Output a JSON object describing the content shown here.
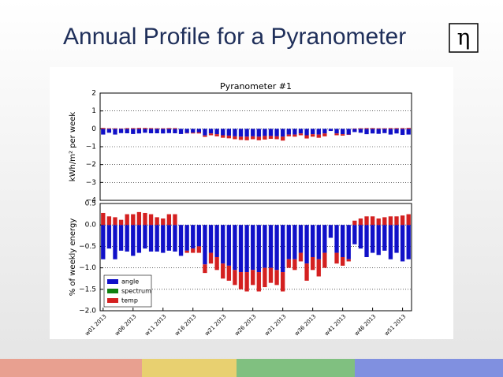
{
  "title": "Annual Profile for a Pyranometer",
  "logo_symbol": "η",
  "chart_data": [
    {
      "type": "bar",
      "title": "Pyranometer #1",
      "ylabel": "kWh/m² per week",
      "ylim": [
        -4,
        2
      ],
      "yticks": [
        {
          "value": -4,
          "label": "−4"
        },
        {
          "value": -3,
          "label": "−3"
        },
        {
          "value": -2,
          "label": "−2"
        },
        {
          "value": -1,
          "label": "−1"
        },
        0,
        1,
        2
      ],
      "grid": true,
      "series": [
        {
          "color": "#1010c8",
          "values": [
            -0.32,
            -0.22,
            -0.32,
            -0.24,
            -0.25,
            -0.29,
            -0.26,
            -0.22,
            -0.25,
            -0.25,
            -0.26,
            -0.24,
            -0.25,
            -0.29,
            -0.24,
            -0.22,
            -0.2,
            -0.37,
            -0.26,
            -0.3,
            -0.36,
            -0.38,
            -0.42,
            -0.44,
            -0.44,
            -0.42,
            -0.44,
            -0.4,
            -0.4,
            -0.42,
            -0.44,
            -0.32,
            -0.32,
            -0.26,
            -0.36,
            -0.3,
            -0.32,
            -0.26,
            -0.12,
            -0.26,
            -0.3,
            -0.32,
            -0.18,
            -0.22,
            -0.3,
            -0.26,
            -0.28,
            -0.24,
            -0.32,
            -0.26,
            -0.34,
            -0.32
          ]
        },
        {
          "color": "#d42020",
          "values": [
            0.05,
            0.03,
            0.03,
            0.02,
            0.04,
            0.04,
            0.05,
            0.05,
            0.04,
            0.03,
            0.03,
            0.04,
            0.04,
            0,
            -0.02,
            -0.04,
            -0.06,
            -0.08,
            -0.1,
            -0.12,
            -0.14,
            -0.15,
            -0.16,
            -0.18,
            -0.2,
            -0.16,
            -0.2,
            -0.2,
            -0.16,
            -0.16,
            -0.22,
            -0.1,
            -0.12,
            -0.1,
            -0.18,
            -0.14,
            -0.18,
            -0.16,
            0,
            -0.1,
            -0.08,
            -0.02,
            0.02,
            0.03,
            0.04,
            0.04,
            0.03,
            0.03,
            0.04,
            0.04,
            0.04,
            0.05
          ]
        }
      ]
    },
    {
      "type": "bar",
      "ylabel": "% of weekly energy",
      "ylim": [
        -2.0,
        0.5
      ],
      "yticks": [
        {
          "value": -2.0,
          "label": "−2.0"
        },
        {
          "value": -1.5,
          "label": "−1.5"
        },
        {
          "value": -1.0,
          "label": "−1.0"
        },
        {
          "value": -0.5,
          "label": "−0.5"
        },
        {
          "value": 0,
          "label": "0.0"
        },
        {
          "value": 0.5,
          "label": "0.5"
        }
      ],
      "grid": true,
      "legend": "lower left",
      "categories": [
        "w01 2013",
        null,
        null,
        null,
        null,
        "w06 2013",
        null,
        null,
        null,
        null,
        "w11 2013",
        null,
        null,
        null,
        null,
        "w16 2013",
        null,
        null,
        null,
        null,
        "w21 2013",
        null,
        null,
        null,
        null,
        "w26 2013",
        null,
        null,
        null,
        null,
        "w31 2013",
        null,
        null,
        null,
        null,
        "w36 2013",
        null,
        null,
        null,
        null,
        "w41 2013",
        null,
        null,
        null,
        null,
        "w46 2013",
        null,
        null,
        null,
        null,
        "w51 2013",
        null
      ],
      "series": [
        {
          "name": "angle",
          "color": "#1010c8",
          "values": [
            -0.8,
            -0.55,
            -0.8,
            -0.6,
            -0.62,
            -0.72,
            -0.65,
            -0.55,
            -0.62,
            -0.62,
            -0.65,
            -0.6,
            -0.62,
            -0.72,
            -0.6,
            -0.55,
            -0.5,
            -0.92,
            -0.65,
            -0.75,
            -0.9,
            -0.95,
            -1.05,
            -1.1,
            -1.1,
            -1.05,
            -1.1,
            -1.0,
            -1.0,
            -1.05,
            -1.1,
            -0.8,
            -0.8,
            -0.65,
            -0.9,
            -0.75,
            -0.8,
            -0.65,
            -0.3,
            -0.65,
            -0.75,
            -0.8,
            -0.45,
            -0.55,
            -0.75,
            -0.65,
            -0.7,
            -0.6,
            -0.8,
            -0.65,
            -0.85,
            -0.8
          ]
        },
        {
          "name": "spectrum",
          "color": "#108010",
          "values": [
            0,
            0,
            0,
            0,
            0,
            0,
            0,
            0,
            0,
            0,
            0,
            0,
            0,
            0,
            0,
            0,
            0,
            0,
            0,
            0,
            0,
            0,
            0,
            0,
            0,
            0,
            0,
            0,
            0,
            0,
            0,
            0,
            0,
            0,
            0,
            0,
            0,
            0,
            0,
            0,
            0,
            0,
            0,
            0,
            0,
            0,
            0,
            0,
            0,
            0,
            0,
            0
          ]
        },
        {
          "name": "temp",
          "color": "#d42020",
          "values": [
            0.28,
            0.2,
            0.18,
            0.12,
            0.25,
            0.25,
            0.3,
            0.28,
            0.25,
            0.18,
            0.15,
            0.25,
            0.25,
            0,
            -0.05,
            -0.1,
            -0.15,
            -0.2,
            -0.25,
            -0.3,
            -0.35,
            -0.35,
            -0.35,
            -0.4,
            -0.45,
            -0.35,
            -0.45,
            -0.45,
            -0.35,
            -0.35,
            -0.45,
            -0.2,
            -0.25,
            -0.2,
            -0.4,
            -0.3,
            -0.4,
            -0.35,
            0,
            -0.25,
            -0.2,
            -0.05,
            0.1,
            0.15,
            0.2,
            0.2,
            0.15,
            0.18,
            0.2,
            0.2,
            0.22,
            0.25
          ]
        }
      ]
    }
  ]
}
